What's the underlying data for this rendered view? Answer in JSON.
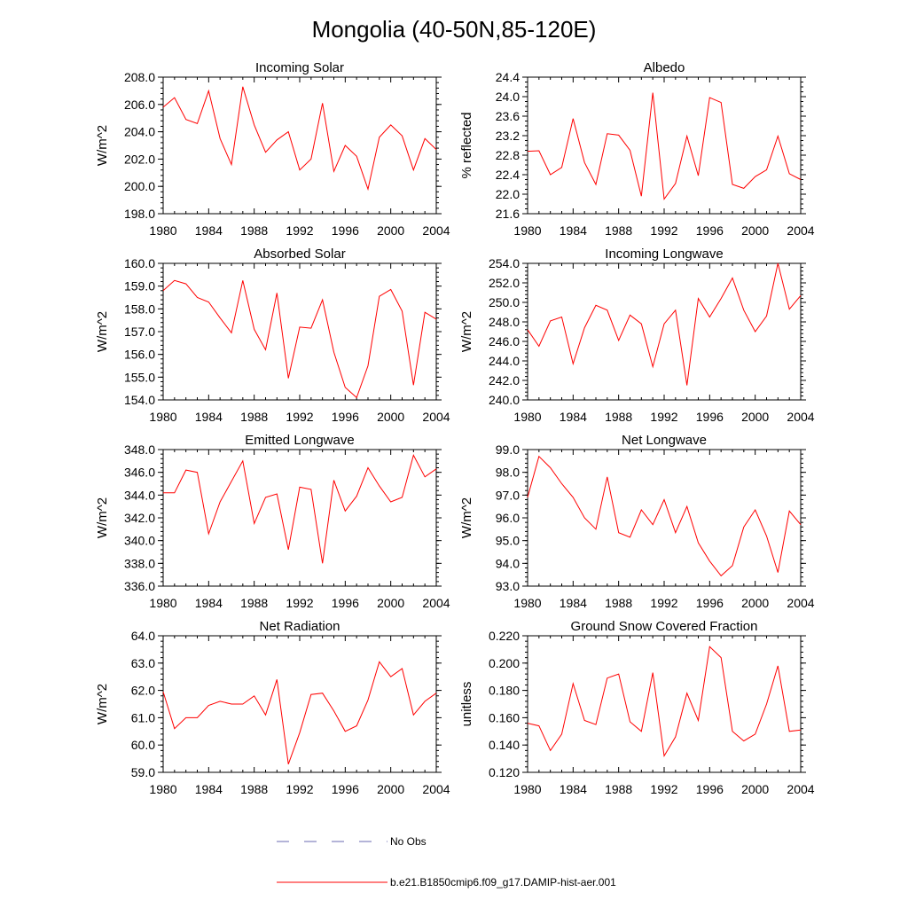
{
  "title": "Mongolia (40-50N,85-120E)",
  "chart_data": [
    {
      "type": "line",
      "title": "Incoming Solar",
      "ylabel": "W/m^2",
      "xlim": [
        1980,
        2004
      ],
      "ylim": [
        198.0,
        208.0
      ],
      "xticks": [
        1980,
        1984,
        1988,
        1992,
        1996,
        2000,
        2004
      ],
      "yticks": [
        198.0,
        200.0,
        202.0,
        204.0,
        206.0,
        208.0
      ],
      "yminor": 0.4,
      "decimals": 1,
      "series": [
        {
          "name": "b.e21.B1850cmip6.f09_g17.DAMIP-hist-aer.001",
          "x": [
            1980,
            1981,
            1982,
            1983,
            1984,
            1985,
            1986,
            1987,
            1988,
            1989,
            1990,
            1991,
            1992,
            1993,
            1994,
            1995,
            1996,
            1997,
            1998,
            1999,
            2000,
            2001,
            2002,
            2003,
            2004
          ],
          "values": [
            205.8,
            206.5,
            204.9,
            204.6,
            207.0,
            203.5,
            201.6,
            207.3,
            204.5,
            202.5,
            203.4,
            204.0,
            201.2,
            202.0,
            206.1,
            201.1,
            203.0,
            202.2,
            199.8,
            203.6,
            204.5,
            203.7,
            201.2,
            203.5,
            202.7
          ]
        }
      ]
    },
    {
      "type": "line",
      "title": "Albedo",
      "ylabel": "% reflected",
      "xlim": [
        1980,
        2004
      ],
      "ylim": [
        21.6,
        24.4
      ],
      "xticks": [
        1980,
        1984,
        1988,
        1992,
        1996,
        2000,
        2004
      ],
      "yticks": [
        21.6,
        22.0,
        22.4,
        22.8,
        23.2,
        23.6,
        24.0,
        24.4
      ],
      "yminor": 0.1,
      "decimals": 1,
      "series": [
        {
          "name": "b.e21.B1850cmip6.f09_g17.DAMIP-hist-aer.001",
          "x": [
            1980,
            1981,
            1982,
            1983,
            1984,
            1985,
            1986,
            1987,
            1988,
            1989,
            1990,
            1991,
            1992,
            1993,
            1994,
            1995,
            1996,
            1997,
            1998,
            1999,
            2000,
            2001,
            2002,
            2003,
            2004
          ],
          "values": [
            22.88,
            22.89,
            22.4,
            22.55,
            23.55,
            22.65,
            22.2,
            23.24,
            23.21,
            22.9,
            21.96,
            24.08,
            21.9,
            22.22,
            23.19,
            22.38,
            23.98,
            23.88,
            22.2,
            22.12,
            22.36,
            22.5,
            23.19,
            22.42,
            22.3
          ]
        }
      ]
    },
    {
      "type": "line",
      "title": "Absorbed Solar",
      "ylabel": "W/m^2",
      "xlim": [
        1980,
        2004
      ],
      "ylim": [
        154.0,
        160.0
      ],
      "xticks": [
        1980,
        1984,
        1988,
        1992,
        1996,
        2000,
        2004
      ],
      "yticks": [
        154.0,
        155.0,
        156.0,
        157.0,
        158.0,
        159.0,
        160.0
      ],
      "yminor": 0.2,
      "decimals": 1,
      "series": [
        {
          "name": "b.e21.B1850cmip6.f09_g17.DAMIP-hist-aer.001",
          "x": [
            1980,
            1981,
            1982,
            1983,
            1984,
            1985,
            1986,
            1987,
            1988,
            1989,
            1990,
            1991,
            1992,
            1993,
            1994,
            1995,
            1996,
            1997,
            1998,
            1999,
            2000,
            2001,
            2002,
            2003,
            2004
          ],
          "values": [
            158.8,
            159.25,
            159.1,
            158.5,
            158.3,
            157.6,
            156.95,
            159.25,
            157.1,
            156.2,
            158.7,
            154.95,
            157.2,
            157.15,
            158.4,
            156.1,
            154.55,
            154.1,
            155.5,
            158.55,
            158.85,
            157.9,
            154.65,
            157.85,
            157.55
          ]
        }
      ]
    },
    {
      "type": "line",
      "title": "Incoming Longwave",
      "ylabel": "W/m^2",
      "xlim": [
        1980,
        2004
      ],
      "ylim": [
        240.0,
        254.0
      ],
      "xticks": [
        1980,
        1984,
        1988,
        1992,
        1996,
        2000,
        2004
      ],
      "yticks": [
        240.0,
        242.0,
        244.0,
        246.0,
        248.0,
        250.0,
        252.0,
        254.0
      ],
      "yminor": 0.4,
      "decimals": 1,
      "series": [
        {
          "name": "b.e21.B1850cmip6.f09_g17.DAMIP-hist-aer.001",
          "x": [
            1980,
            1981,
            1982,
            1983,
            1984,
            1985,
            1986,
            1987,
            1988,
            1989,
            1990,
            1991,
            1992,
            1993,
            1994,
            1995,
            1996,
            1997,
            1998,
            1999,
            2000,
            2001,
            2002,
            2003,
            2004
          ],
          "values": [
            247.2,
            245.5,
            248.1,
            248.5,
            243.7,
            247.4,
            249.7,
            249.2,
            246.1,
            248.7,
            247.8,
            243.4,
            247.8,
            249.2,
            241.5,
            250.4,
            248.5,
            250.4,
            252.5,
            249.2,
            247.0,
            248.6,
            254.0,
            249.3,
            250.7
          ]
        }
      ]
    },
    {
      "type": "line",
      "title": "Emitted Longwave",
      "ylabel": "W/m^2",
      "xlim": [
        1980,
        2004
      ],
      "ylim": [
        336.0,
        348.0
      ],
      "xticks": [
        1980,
        1984,
        1988,
        1992,
        1996,
        2000,
        2004
      ],
      "yticks": [
        336.0,
        338.0,
        340.0,
        342.0,
        344.0,
        346.0,
        348.0
      ],
      "yminor": 0.4,
      "decimals": 1,
      "series": [
        {
          "name": "b.e21.B1850cmip6.f09_g17.DAMIP-hist-aer.001",
          "x": [
            1980,
            1981,
            1982,
            1983,
            1984,
            1985,
            1986,
            1987,
            1988,
            1989,
            1990,
            1991,
            1992,
            1993,
            1994,
            1995,
            1996,
            1997,
            1998,
            1999,
            2000,
            2001,
            2002,
            2003,
            2004
          ],
          "values": [
            344.2,
            344.2,
            346.2,
            346.0,
            340.6,
            343.4,
            345.2,
            347.0,
            341.5,
            343.8,
            344.1,
            339.2,
            344.7,
            344.5,
            338.0,
            345.3,
            342.6,
            343.9,
            346.4,
            344.8,
            343.4,
            343.8,
            347.5,
            345.6,
            346.3
          ]
        }
      ]
    },
    {
      "type": "line",
      "title": "Net Longwave",
      "ylabel": "W/m^2",
      "xlim": [
        1980,
        2004
      ],
      "ylim": [
        93.0,
        99.0
      ],
      "xticks": [
        1980,
        1984,
        1988,
        1992,
        1996,
        2000,
        2004
      ],
      "yticks": [
        93.0,
        94.0,
        95.0,
        96.0,
        97.0,
        98.0,
        99.0
      ],
      "yminor": 0.2,
      "decimals": 1,
      "series": [
        {
          "name": "b.e21.B1850cmip6.f09_g17.DAMIP-hist-aer.001",
          "x": [
            1980,
            1981,
            1982,
            1983,
            1984,
            1985,
            1986,
            1987,
            1988,
            1989,
            1990,
            1991,
            1992,
            1993,
            1994,
            1995,
            1996,
            1997,
            1998,
            1999,
            2000,
            2001,
            2002,
            2003,
            2004
          ],
          "values": [
            96.9,
            98.7,
            98.2,
            97.5,
            96.9,
            96.0,
            95.5,
            97.8,
            95.35,
            95.15,
            96.35,
            95.7,
            96.8,
            95.35,
            96.5,
            94.9,
            94.1,
            93.45,
            93.9,
            95.6,
            96.35,
            95.2,
            93.6,
            96.3,
            95.7
          ]
        }
      ]
    },
    {
      "type": "line",
      "title": "Net Radiation",
      "ylabel": "W/m^2",
      "xlim": [
        1980,
        2004
      ],
      "ylim": [
        59.0,
        64.0
      ],
      "xticks": [
        1980,
        1984,
        1988,
        1992,
        1996,
        2000,
        2004
      ],
      "yticks": [
        59.0,
        60.0,
        61.0,
        62.0,
        63.0,
        64.0
      ],
      "yminor": 0.2,
      "decimals": 1,
      "series": [
        {
          "name": "b.e21.B1850cmip6.f09_g17.DAMIP-hist-aer.001",
          "x": [
            1980,
            1981,
            1982,
            1983,
            1984,
            1985,
            1986,
            1987,
            1988,
            1989,
            1990,
            1991,
            1992,
            1993,
            1994,
            1995,
            1996,
            1997,
            1998,
            1999,
            2000,
            2001,
            2002,
            2003,
            2004
          ],
          "values": [
            61.95,
            60.6,
            61.0,
            61.0,
            61.45,
            61.6,
            61.5,
            61.5,
            61.8,
            61.1,
            62.4,
            59.3,
            60.45,
            61.85,
            61.9,
            61.25,
            60.5,
            60.7,
            61.65,
            63.05,
            62.5,
            62.8,
            61.1,
            61.6,
            61.9
          ]
        }
      ]
    },
    {
      "type": "line",
      "title": "Ground Snow Covered Fraction",
      "ylabel": "unitless",
      "xlim": [
        1980,
        2004
      ],
      "ylim": [
        0.12,
        0.22
      ],
      "xticks": [
        1980,
        1984,
        1988,
        1992,
        1996,
        2000,
        2004
      ],
      "yticks": [
        0.12,
        0.14,
        0.16,
        0.18,
        0.2,
        0.22
      ],
      "yminor": 0.004,
      "decimals": 3,
      "series": [
        {
          "name": "b.e21.B1850cmip6.f09_g17.DAMIP-hist-aer.001",
          "x": [
            1980,
            1981,
            1982,
            1983,
            1984,
            1985,
            1986,
            1987,
            1988,
            1989,
            1990,
            1991,
            1992,
            1993,
            1994,
            1995,
            1996,
            1997,
            1998,
            1999,
            2000,
            2001,
            2002,
            2003,
            2004
          ],
          "values": [
            0.156,
            0.154,
            0.136,
            0.148,
            0.185,
            0.158,
            0.155,
            0.189,
            0.192,
            0.157,
            0.15,
            0.193,
            0.132,
            0.146,
            0.178,
            0.158,
            0.212,
            0.204,
            0.15,
            0.143,
            0.148,
            0.17,
            0.198,
            0.15,
            0.151
          ]
        }
      ]
    }
  ],
  "legend": {
    "placement": "bottom-center",
    "items": [
      {
        "label": "No Obs",
        "color": "#6a6ab0",
        "style": "dashed"
      },
      {
        "label": "b.e21.B1850cmip6.f09_g17.DAMIP-hist-aer.001",
        "color": "#ff0000",
        "style": "solid"
      }
    ]
  }
}
